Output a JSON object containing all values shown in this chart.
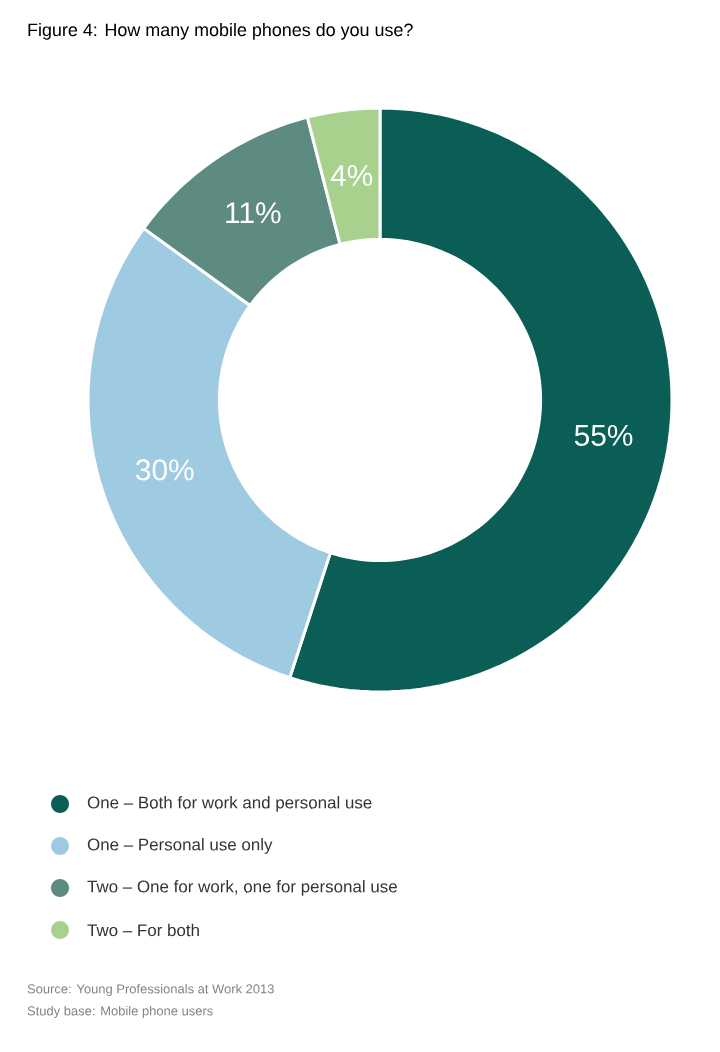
{
  "chart_data": {
    "type": "donut",
    "title": "Figure 4: How many mobile phones do you use?",
    "categories": [
      "One – Both for work and personal use",
      "One – Personal use only",
      "Two – One for work, one for personal use",
      "Two – For both"
    ],
    "values": [
      55,
      30,
      11,
      4
    ],
    "value_labels": [
      "55%",
      "30%",
      "11%",
      "4%"
    ],
    "colors": [
      "#0b5e55",
      "#9ecbe1",
      "#5e8b81",
      "#a9d18e"
    ],
    "legend": "bottom",
    "annotations": [
      "Source: Young Professionals at Work 2013",
      "Study base: Mobile phone users"
    ]
  }
}
